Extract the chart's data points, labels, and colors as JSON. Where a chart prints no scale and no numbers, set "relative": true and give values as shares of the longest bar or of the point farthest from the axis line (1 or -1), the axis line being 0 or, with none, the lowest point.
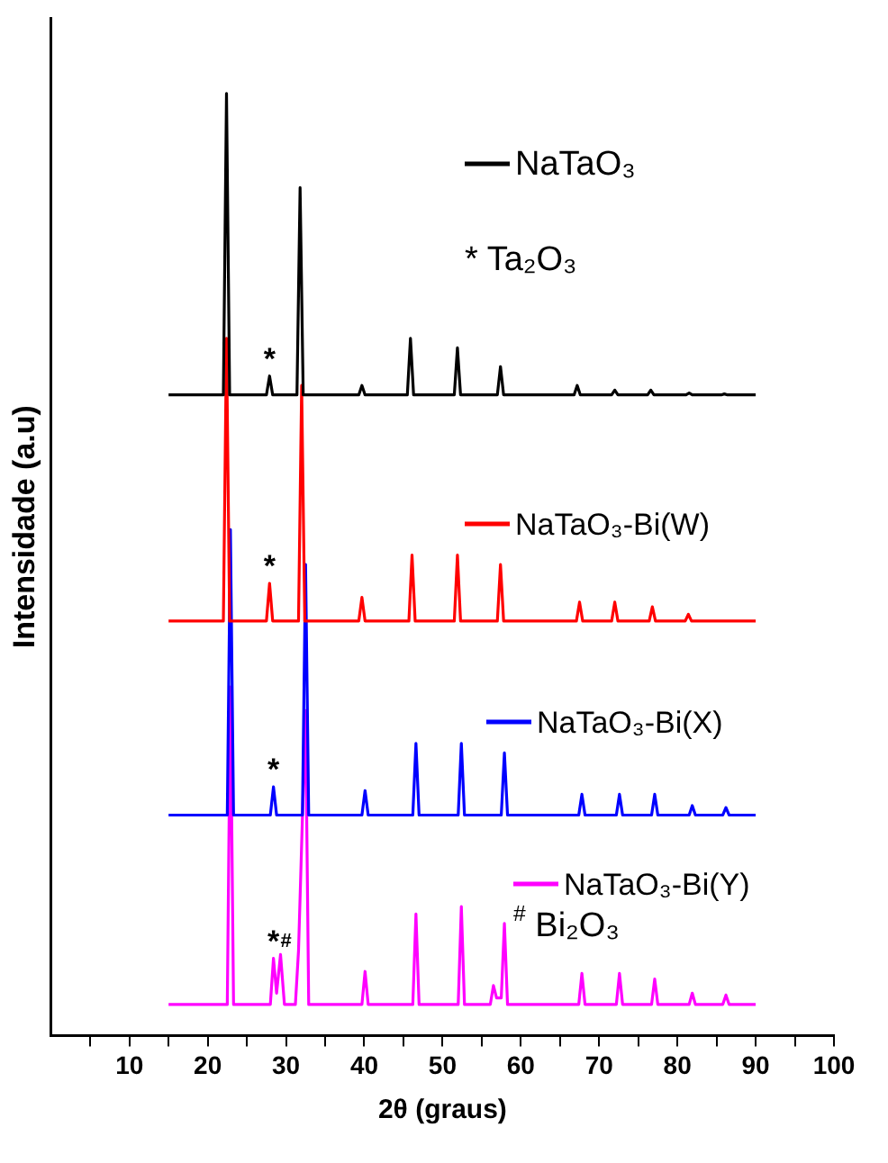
{
  "chart_data": {
    "type": "line",
    "relative": true,
    "xlabel": "2θ (graus)",
    "ylabel": "Intensidade (a.u)",
    "xlim": [
      0,
      100
    ],
    "xticks": [
      {
        "value": 5,
        "label": null
      },
      10,
      {
        "value": 15,
        "label": null
      },
      20,
      {
        "value": 25,
        "label": null
      },
      30,
      {
        "value": 35,
        "label": null
      },
      40,
      {
        "value": 45,
        "label": null
      },
      50,
      {
        "value": 55,
        "label": null
      },
      60,
      {
        "value": 65,
        "label": null
      },
      70,
      {
        "value": 75,
        "label": null
      },
      80,
      {
        "value": 85,
        "label": null
      },
      90,
      {
        "value": 95,
        "label": null
      },
      100
    ],
    "marker": "none",
    "legend": "right",
    "line_style": "solid",
    "grid": false,
    "series": [
      {
        "name": "NaTaO₃",
        "color": "#000000",
        "x": [
          15,
          22,
          22.4,
          22.8,
          27.5,
          27.9,
          28.3,
          31.4,
          31.8,
          32.2,
          39.3,
          39.7,
          40.1,
          45.5,
          45.9,
          46.3,
          51.5,
          51.9,
          52.3,
          57,
          57.4,
          57.8,
          66.8,
          67.2,
          67.6,
          71.6,
          72,
          72.4,
          76.2,
          76.6,
          77,
          81.1,
          81.5,
          81.9,
          85.6,
          86,
          86.4,
          90
        ],
        "values": [
          0.68,
          0.68,
          1.0,
          0.68,
          0.68,
          0.7,
          0.68,
          0.68,
          0.9,
          0.68,
          0.68,
          0.69,
          0.68,
          0.68,
          0.74,
          0.68,
          0.68,
          0.73,
          0.68,
          0.68,
          0.71,
          0.68,
          0.68,
          0.69,
          0.68,
          0.68,
          0.685,
          0.68,
          0.68,
          0.685,
          0.68,
          0.68,
          0.682,
          0.68,
          0.68,
          0.681,
          0.68,
          0.68
        ]
      },
      {
        "name": "NaTaO₃-Bi(W)",
        "color": "#ff0000",
        "x": [
          15,
          22,
          22.4,
          22.8,
          27.5,
          27.9,
          28.3,
          31.6,
          32,
          32.4,
          39.3,
          39.7,
          40.1,
          45.7,
          46.1,
          46.5,
          51.5,
          51.9,
          52.3,
          57,
          57.4,
          57.8,
          67.1,
          67.5,
          67.9,
          71.6,
          72,
          72.4,
          76.4,
          76.8,
          77.2,
          81,
          81.4,
          81.8,
          90
        ],
        "values": [
          0.44,
          0.44,
          0.74,
          0.44,
          0.44,
          0.48,
          0.44,
          0.44,
          0.69,
          0.44,
          0.44,
          0.465,
          0.44,
          0.44,
          0.51,
          0.44,
          0.44,
          0.51,
          0.44,
          0.44,
          0.5,
          0.44,
          0.44,
          0.46,
          0.44,
          0.44,
          0.46,
          0.44,
          0.44,
          0.455,
          0.44,
          0.44,
          0.447,
          0.44,
          0.44
        ]
      },
      {
        "name": "NaTaO₃-Bi(X)",
        "color": "#0000ff",
        "x": [
          15,
          22.5,
          22.9,
          23.3,
          28,
          28.4,
          28.8,
          32.1,
          32.5,
          32.9,
          39.7,
          40.1,
          40.5,
          46.2,
          46.6,
          47,
          52,
          52.4,
          52.8,
          57.5,
          57.9,
          58.3,
          67.4,
          67.8,
          68.2,
          72.2,
          72.6,
          73,
          76.7,
          77.1,
          77.5,
          81.5,
          81.9,
          82.3,
          85.8,
          86.2,
          86.6,
          90
        ],
        "values": [
          0.234,
          0.234,
          0.537,
          0.234,
          0.234,
          0.264,
          0.234,
          0.234,
          0.5,
          0.234,
          0.234,
          0.26,
          0.234,
          0.234,
          0.31,
          0.234,
          0.234,
          0.31,
          0.234,
          0.234,
          0.3,
          0.234,
          0.234,
          0.256,
          0.234,
          0.234,
          0.256,
          0.234,
          0.234,
          0.256,
          0.234,
          0.234,
          0.244,
          0.234,
          0.234,
          0.242,
          0.234,
          0.234
        ]
      },
      {
        "name": "NaTaO₃-Bi(Y)",
        "color": "#ff00ff",
        "x": [
          15,
          22.5,
          22.9,
          23.3,
          28,
          28.4,
          28.8,
          29.3,
          29.8,
          31.2,
          31.6,
          32.5,
          32.9,
          39.7,
          40.1,
          40.5,
          46.2,
          46.6,
          47,
          52,
          52.4,
          52.8,
          56.1,
          56.5,
          56.9,
          57.5,
          57.9,
          58.3,
          67.4,
          67.8,
          68.2,
          72.2,
          72.6,
          73,
          76.7,
          77.1,
          77.5,
          81.5,
          81.9,
          82.3,
          85.8,
          86.2,
          86.6,
          90
        ],
        "values": [
          0.033,
          0.033,
          0.37,
          0.033,
          0.033,
          0.082,
          0.045,
          0.086,
          0.033,
          0.033,
          0.09,
          0.345,
          0.033,
          0.033,
          0.068,
          0.033,
          0.033,
          0.129,
          0.033,
          0.033,
          0.137,
          0.033,
          0.033,
          0.053,
          0.04,
          0.04,
          0.119,
          0.033,
          0.033,
          0.066,
          0.033,
          0.033,
          0.066,
          0.033,
          0.033,
          0.06,
          0.033,
          0.033,
          0.045,
          0.033,
          0.033,
          0.043,
          0.033,
          0.033
        ]
      }
    ],
    "annotations": [
      "* Ta₂O₃",
      "$^{#}$ Bi₂O₃",
      {
        "text": "*",
        "x": 27.9,
        "y": 0.7
      },
      {
        "text": "*",
        "x": 27.9,
        "y": 0.48
      },
      {
        "text": "*",
        "x": 28.4,
        "y": 0.264
      },
      {
        "text": "*",
        "x": 28.4,
        "y": 0.082
      },
      {
        "text": "#",
        "x": 29.3,
        "y": 0.086
      }
    ]
  }
}
